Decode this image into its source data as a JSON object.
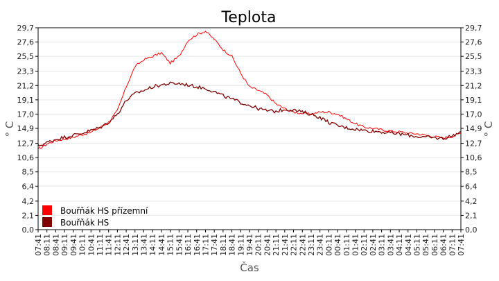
{
  "chart_data": {
    "type": "line",
    "title": "Teplota",
    "xlabel": "Čas",
    "ylabel": "° C",
    "ylim": [
      0,
      29.7
    ],
    "yticks": [
      "0,0",
      "2,1",
      "4,2",
      "6,4",
      "8,5",
      "10,6",
      "12,7",
      "14,9",
      "17,0",
      "19,1",
      "21,2",
      "23,3",
      "25,5",
      "27,6",
      "29,7"
    ],
    "x_labels": [
      "07:41",
      "08:11",
      "08:41",
      "09:11",
      "09:41",
      "10:11",
      "10:41",
      "11:11",
      "11:41",
      "12:11",
      "12:41",
      "13:11",
      "13:41",
      "14:11",
      "14:41",
      "15:11",
      "15:41",
      "16:11",
      "16:41",
      "17:11",
      "17:41",
      "18:11",
      "18:41",
      "19:11",
      "19:41",
      "20:11",
      "20:41",
      "21:11",
      "21:41",
      "22:11",
      "22:41",
      "23:11",
      "23:41",
      "00:11",
      "00:41",
      "01:11",
      "01:41",
      "02:11",
      "02:41",
      "03:11",
      "03:41",
      "04:11",
      "04:41",
      "05:11",
      "05:41",
      "06:11",
      "06:41",
      "07:11",
      "07:41"
    ],
    "grid": true,
    "legend_position": "bottom-left",
    "series": [
      {
        "name": "Bouřňák HS přízemní",
        "color": "#ff0000",
        "values": [
          11.8,
          12.6,
          13.1,
          13.3,
          13.6,
          14.0,
          14.3,
          15.0,
          15.8,
          17.5,
          21.0,
          24.0,
          25.0,
          25.5,
          26.0,
          24.5,
          25.5,
          27.8,
          28.7,
          29.2,
          28.0,
          26.5,
          25.5,
          23.0,
          21.0,
          20.5,
          19.8,
          18.5,
          17.8,
          17.3,
          17.1,
          17.0,
          17.3,
          17.3,
          17.0,
          16.3,
          15.6,
          15.1,
          14.9,
          14.7,
          14.5,
          14.4,
          14.2,
          14.1,
          13.9,
          13.7,
          13.5,
          13.7,
          14.2
        ]
      },
      {
        "name": "Bouřňák HS",
        "color": "#800000",
        "values": [
          12.3,
          12.8,
          13.3,
          13.6,
          13.9,
          14.2,
          14.6,
          15.0,
          15.8,
          17.0,
          19.0,
          20.0,
          20.5,
          21.0,
          21.3,
          21.5,
          21.5,
          21.3,
          21.0,
          20.8,
          20.3,
          19.7,
          19.2,
          18.7,
          18.3,
          17.8,
          17.5,
          17.4,
          17.7,
          17.6,
          17.3,
          17.0,
          16.5,
          15.8,
          15.3,
          15.0,
          14.8,
          14.6,
          14.5,
          14.4,
          14.2,
          14.1,
          13.9,
          13.7,
          13.6,
          13.5,
          13.4,
          13.8,
          14.4
        ]
      }
    ]
  }
}
